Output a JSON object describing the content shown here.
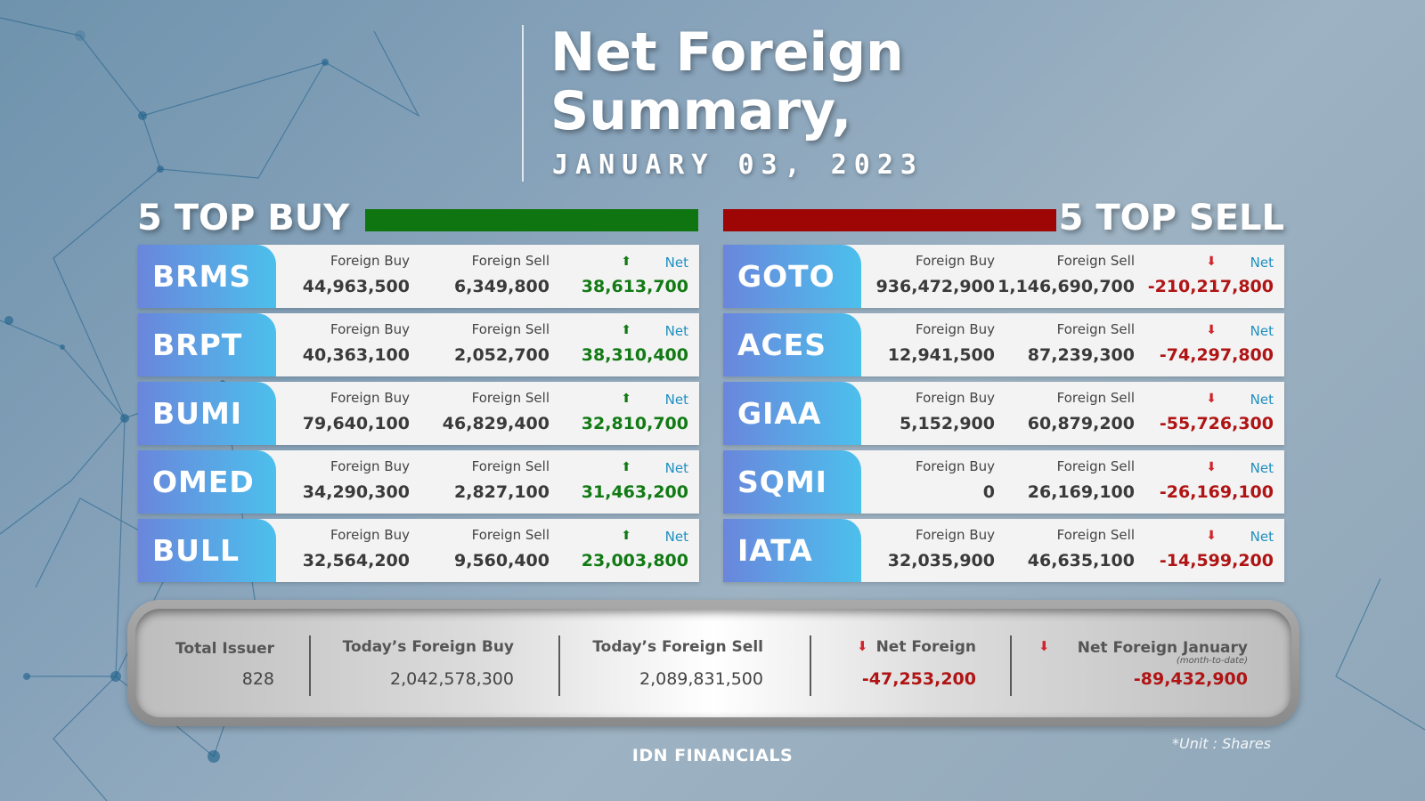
{
  "header": {
    "title_line1": "Net Foreign",
    "title_line2": "Summary,",
    "date": "JANUARY 03, 2023"
  },
  "top_buy": {
    "title": "5 TOP BUY",
    "bar_color": "#0f7510",
    "rows": [
      {
        "ticker": "BRMS",
        "fb_label": "Foreign Buy",
        "fb": "44,963,500",
        "fs_label": "Foreign Sell",
        "fs": "6,349,800",
        "net_label": "Net",
        "net": "38,613,700"
      },
      {
        "ticker": "BRPT",
        "fb_label": "Foreign Buy",
        "fb": "40,363,100",
        "fs_label": "Foreign Sell",
        "fs": "2,052,700",
        "net_label": "Net",
        "net": "38,310,400"
      },
      {
        "ticker": "BUMI",
        "fb_label": "Foreign Buy",
        "fb": "79,640,100",
        "fs_label": "Foreign Sell",
        "fs": "46,829,400",
        "net_label": "Net",
        "net": "32,810,700"
      },
      {
        "ticker": "OMED",
        "fb_label": "Foreign Buy",
        "fb": "34,290,300",
        "fs_label": "Foreign Sell",
        "fs": "2,827,100",
        "net_label": "Net",
        "net": "31,463,200"
      },
      {
        "ticker": "BULL",
        "fb_label": "Foreign Buy",
        "fb": "32,564,200",
        "fs_label": "Foreign Sell",
        "fs": "9,560,400",
        "net_label": "Net",
        "net": "23,003,800"
      }
    ]
  },
  "top_sell": {
    "title": "5 TOP SELL",
    "bar_color": "#9e0505",
    "rows": [
      {
        "ticker": "GOTO",
        "fb_label": "Foreign Buy",
        "fb": "936,472,900",
        "fs_label": "Foreign Sell",
        "fs": "1,146,690,700",
        "net_label": "Net",
        "net": "-210,217,800"
      },
      {
        "ticker": "ACES",
        "fb_label": "Foreign Buy",
        "fb": "12,941,500",
        "fs_label": "Foreign Sell",
        "fs": "87,239,300",
        "net_label": "Net",
        "net": "-74,297,800"
      },
      {
        "ticker": "GIAA",
        "fb_label": "Foreign Buy",
        "fb": "5,152,900",
        "fs_label": "Foreign Sell",
        "fs": "60,879,200",
        "net_label": "Net",
        "net": "-55,726,300"
      },
      {
        "ticker": "SQMI",
        "fb_label": "Foreign Buy",
        "fb": "0",
        "fs_label": "Foreign Sell",
        "fs": "26,169,100",
        "net_label": "Net",
        "net": "-26,169,100"
      },
      {
        "ticker": "IATA",
        "fb_label": "Foreign Buy",
        "fb": "32,035,900",
        "fs_label": "Foreign Sell",
        "fs": "46,635,100",
        "net_label": "Net",
        "net": "-14,599,200"
      }
    ]
  },
  "summary": {
    "total_issuer_label": "Total Issuer",
    "total_issuer": "828",
    "foreign_buy_label": "Today’s Foreign Buy",
    "foreign_buy": "2,042,578,300",
    "foreign_sell_label": "Today’s Foreign Sell",
    "foreign_sell": "2,089,831,500",
    "net_foreign_label": "Net Foreign",
    "net_foreign": "-47,253,200",
    "net_jan_label": "Net Foreign January",
    "net_jan_sub": "(month-to-date)",
    "net_jan": "-89,432,900"
  },
  "footer": {
    "unit": "*Unit : Shares",
    "brand": "IDN FINANCIALS"
  },
  "icons": {
    "up": "arrow-up-icon",
    "down": "arrow-down-icon"
  },
  "colors": {
    "positive": "#127a14",
    "negative": "#b01414",
    "ticker_gradient_start": "#6a86dc",
    "ticker_gradient_end": "#4cc0ec"
  }
}
